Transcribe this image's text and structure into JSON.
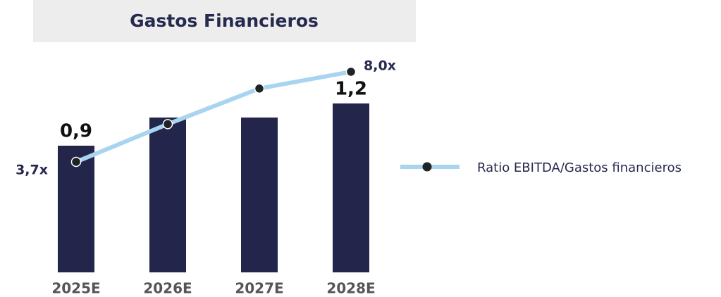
{
  "chart_data": {
    "type": "bar",
    "title": "Gastos Financieros",
    "categories": [
      "2025E",
      "2026E",
      "2027E",
      "2028E"
    ],
    "series": [
      {
        "color": "#23254a",
        "values": [
          0.9,
          1.1,
          1.1,
          1.2
        ],
        "value_labels": [
          "0,9",
          null,
          null,
          "1,2"
        ]
      },
      {
        "name": "Ratio EBITDA/Gastos financieros",
        "type": "line",
        "axis": "y2",
        "color": "#a8d4f0",
        "values": [
          3.7,
          5.5,
          7.2,
          8.0
        ],
        "value_labels": [
          "3,7x",
          null,
          null,
          "8,0x"
        ]
      }
    ]
  }
}
